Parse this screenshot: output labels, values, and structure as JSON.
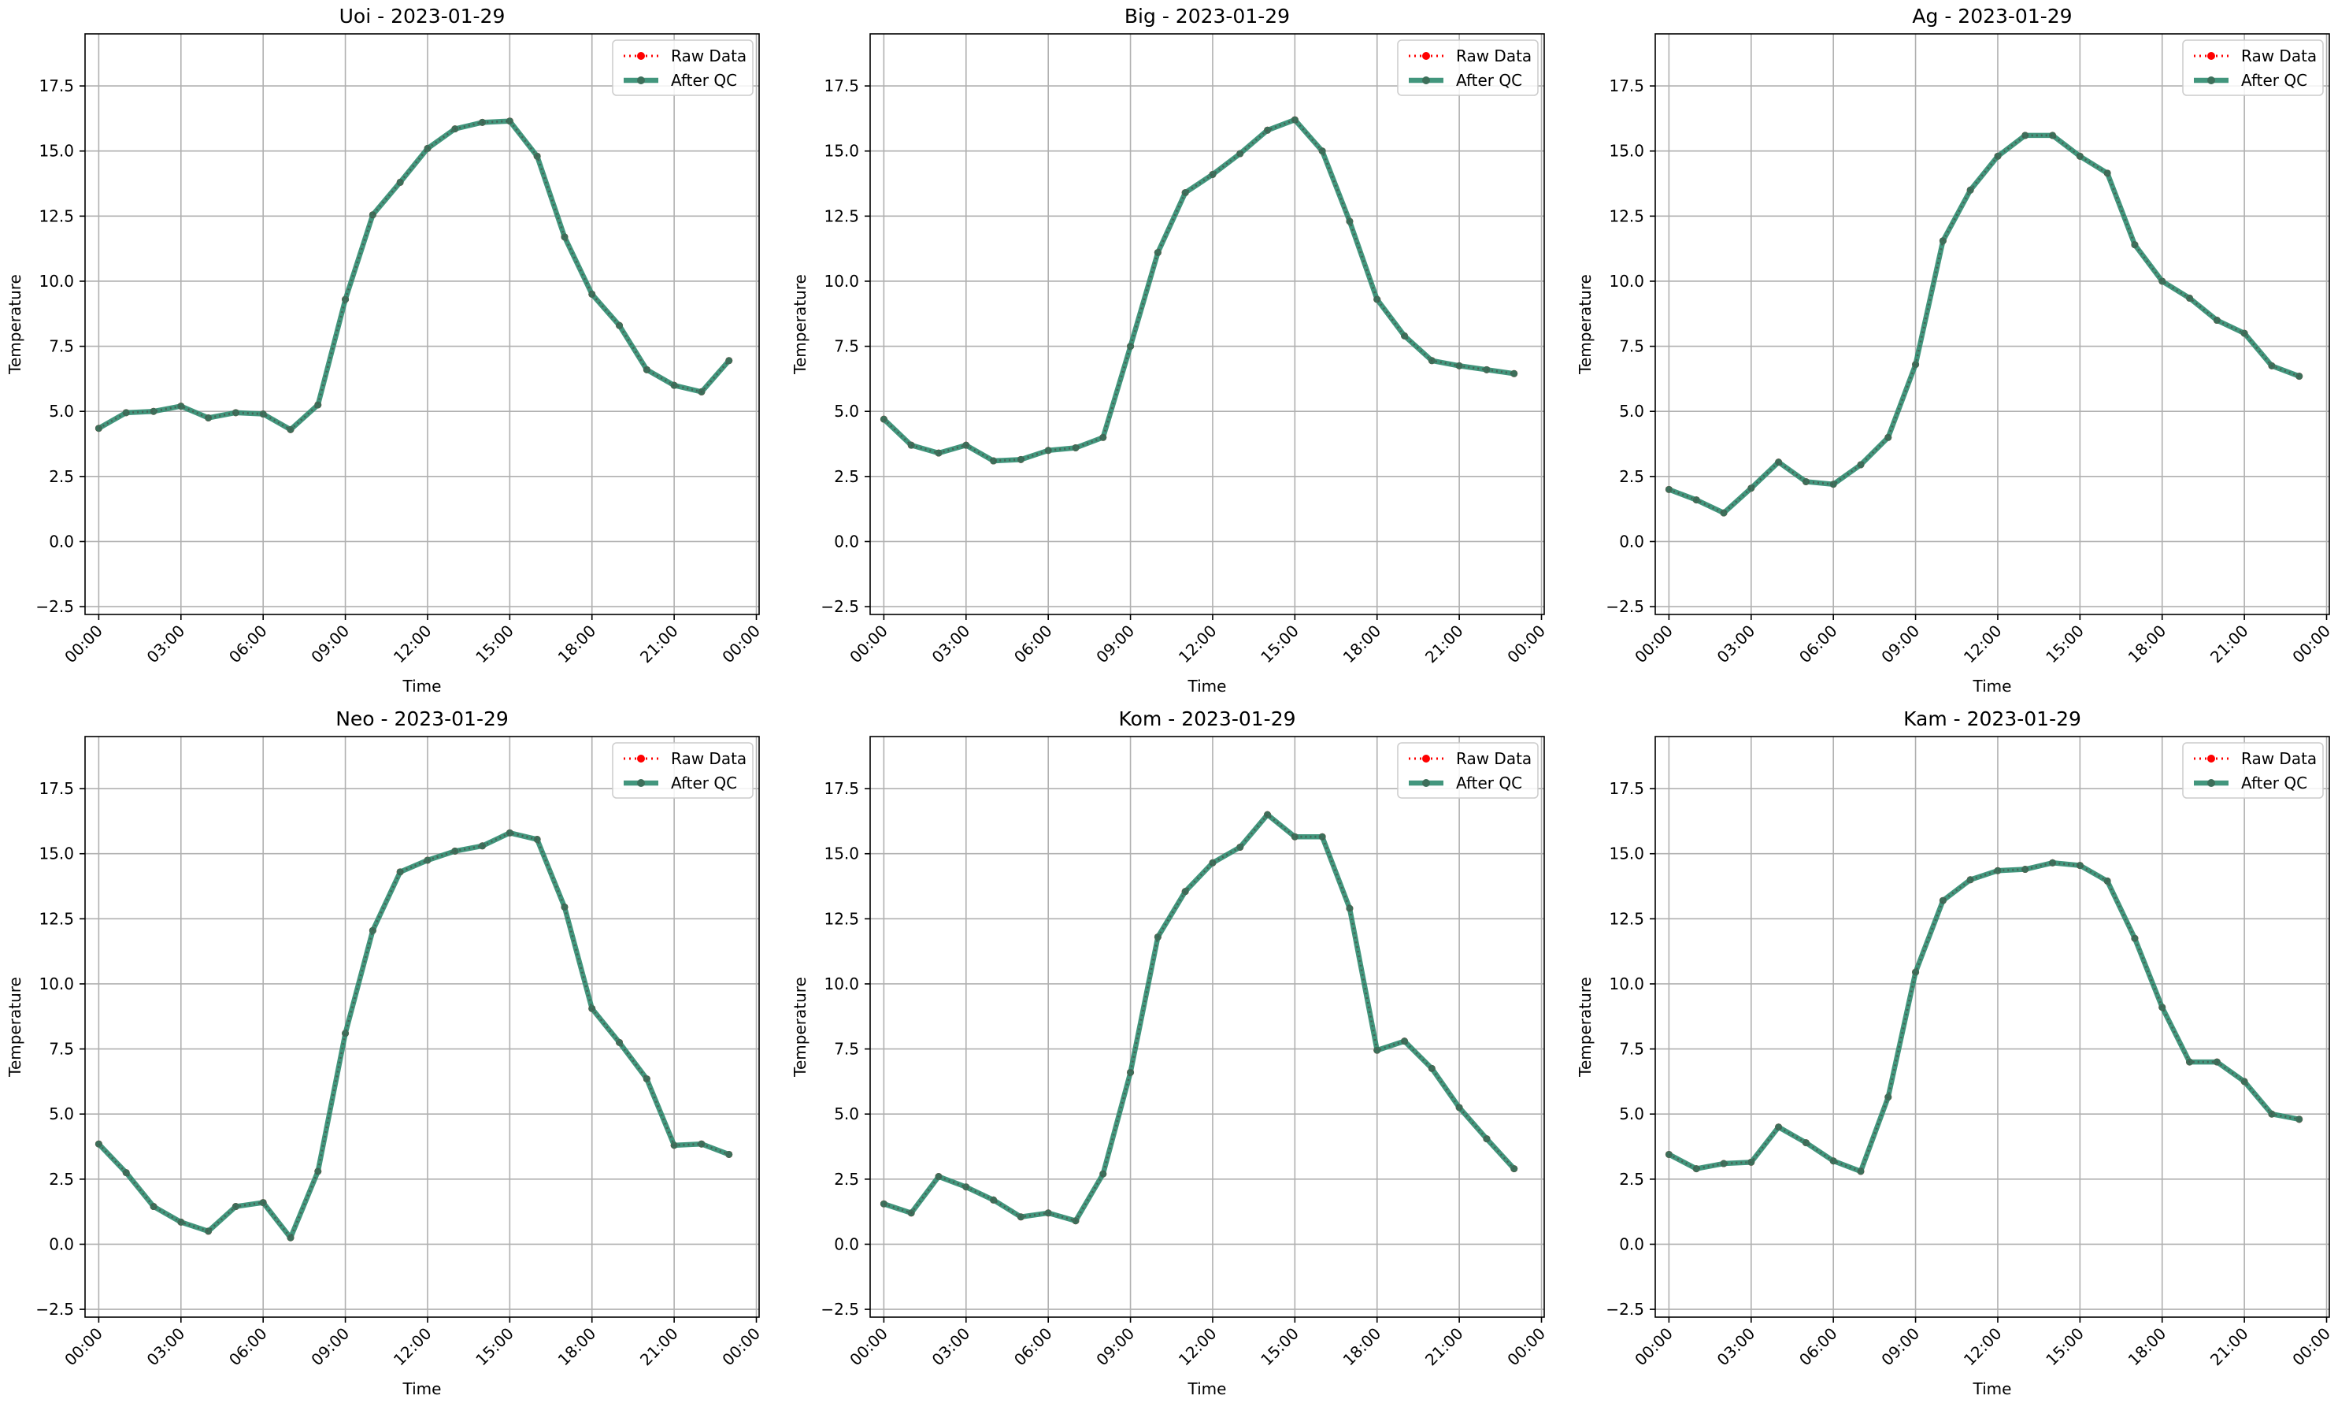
{
  "figure": {
    "legend_labels": [
      "Raw Data",
      "After QC"
    ],
    "colors": {
      "raw": "#ff0000",
      "qc": "#2e8b6f",
      "qc_marker": "#3d6f5a",
      "grid": "#b0b0b0",
      "axis": "#000000"
    }
  },
  "chart_data": [
    {
      "type": "line",
      "title": "Uoi - 2023-01-29",
      "xlabel": "Time",
      "ylabel": "Temperature",
      "ylim": [
        -2.8,
        19.5
      ],
      "xlim_hours": [
        -0.5,
        24.1
      ],
      "x_ticks": [
        "00:00",
        "03:00",
        "06:00",
        "09:00",
        "12:00",
        "15:00",
        "18:00",
        "21:00",
        "00:00"
      ],
      "y_ticks": [
        "−2.5",
        "0.0",
        "2.5",
        "5.0",
        "7.5",
        "10.0",
        "12.5",
        "15.0",
        "17.5"
      ],
      "grid": true,
      "legend_position": "top-right",
      "x": [
        "00:00",
        "01:00",
        "02:00",
        "03:00",
        "04:00",
        "05:00",
        "06:00",
        "07:00",
        "08:00",
        "09:00",
        "10:00",
        "11:00",
        "12:00",
        "13:00",
        "14:00",
        "15:00",
        "16:00",
        "17:00",
        "18:00",
        "19:00",
        "20:00",
        "21:00",
        "22:00",
        "23:00"
      ],
      "series": [
        {
          "name": "Raw Data",
          "values": [
            4.35,
            4.95,
            5.0,
            5.2,
            4.75,
            4.95,
            4.9,
            4.3,
            5.25,
            9.3,
            12.55,
            13.8,
            15.1,
            15.85,
            16.1,
            16.15,
            14.8,
            11.7,
            9.5,
            8.3,
            6.6,
            6.0,
            5.75,
            6.95
          ]
        },
        {
          "name": "After QC",
          "values": [
            4.35,
            4.95,
            5.0,
            5.2,
            4.75,
            4.95,
            4.9,
            4.3,
            5.25,
            9.3,
            12.55,
            13.8,
            15.1,
            15.85,
            16.1,
            16.15,
            14.8,
            11.7,
            9.5,
            8.3,
            6.6,
            6.0,
            5.75,
            6.95
          ]
        }
      ]
    },
    {
      "type": "line",
      "title": "Big - 2023-01-29",
      "xlabel": "Time",
      "ylabel": "Temperature",
      "ylim": [
        -2.8,
        19.5
      ],
      "xlim_hours": [
        -0.5,
        24.1
      ],
      "x_ticks": [
        "00:00",
        "03:00",
        "06:00",
        "09:00",
        "12:00",
        "15:00",
        "18:00",
        "21:00",
        "00:00"
      ],
      "y_ticks": [
        "−2.5",
        "0.0",
        "2.5",
        "5.0",
        "7.5",
        "10.0",
        "12.5",
        "15.0",
        "17.5"
      ],
      "grid": true,
      "legend_position": "top-right",
      "x": [
        "00:00",
        "01:00",
        "02:00",
        "03:00",
        "04:00",
        "05:00",
        "06:00",
        "07:00",
        "08:00",
        "09:00",
        "10:00",
        "11:00",
        "12:00",
        "13:00",
        "14:00",
        "15:00",
        "16:00",
        "17:00",
        "18:00",
        "19:00",
        "20:00",
        "21:00",
        "22:00",
        "23:00"
      ],
      "series": [
        {
          "name": "Raw Data",
          "values": [
            4.7,
            3.7,
            3.4,
            3.7,
            3.1,
            3.15,
            3.5,
            3.6,
            4.0,
            7.5,
            11.1,
            13.4,
            14.1,
            14.9,
            15.8,
            16.2,
            15.0,
            12.3,
            9.3,
            7.9,
            6.95,
            6.75,
            6.6,
            6.45
          ]
        },
        {
          "name": "After QC",
          "values": [
            4.7,
            3.7,
            3.4,
            3.7,
            3.1,
            3.15,
            3.5,
            3.6,
            4.0,
            7.5,
            11.1,
            13.4,
            14.1,
            14.9,
            15.8,
            16.2,
            15.0,
            12.3,
            9.3,
            7.9,
            6.95,
            6.75,
            6.6,
            6.45
          ]
        }
      ]
    },
    {
      "type": "line",
      "title": "Ag - 2023-01-29",
      "xlabel": "Time",
      "ylabel": "Temperature",
      "ylim": [
        -2.8,
        19.5
      ],
      "xlim_hours": [
        -0.5,
        24.1
      ],
      "x_ticks": [
        "00:00",
        "03:00",
        "06:00",
        "09:00",
        "12:00",
        "15:00",
        "18:00",
        "21:00",
        "00:00"
      ],
      "y_ticks": [
        "−2.5",
        "0.0",
        "2.5",
        "5.0",
        "7.5",
        "10.0",
        "12.5",
        "15.0",
        "17.5"
      ],
      "grid": true,
      "legend_position": "top-right",
      "x": [
        "00:00",
        "01:00",
        "02:00",
        "03:00",
        "04:00",
        "05:00",
        "06:00",
        "07:00",
        "08:00",
        "09:00",
        "10:00",
        "11:00",
        "12:00",
        "13:00",
        "14:00",
        "15:00",
        "16:00",
        "17:00",
        "18:00",
        "19:00",
        "20:00",
        "21:00",
        "22:00",
        "23:00"
      ],
      "series": [
        {
          "name": "Raw Data",
          "values": [
            2.0,
            1.6,
            1.1,
            2.05,
            3.05,
            2.3,
            2.2,
            2.95,
            4.0,
            6.8,
            11.55,
            13.5,
            14.8,
            15.6,
            15.6,
            14.8,
            14.15,
            11.4,
            10.0,
            9.35,
            8.5,
            8.0,
            6.75,
            6.35
          ]
        },
        {
          "name": "After QC",
          "values": [
            2.0,
            1.6,
            1.1,
            2.05,
            3.05,
            2.3,
            2.2,
            2.95,
            4.0,
            6.8,
            11.55,
            13.5,
            14.8,
            15.6,
            15.6,
            14.8,
            14.15,
            11.4,
            10.0,
            9.35,
            8.5,
            8.0,
            6.75,
            6.35
          ]
        }
      ]
    },
    {
      "type": "line",
      "title": "Neo - 2023-01-29",
      "xlabel": "Time",
      "ylabel": "Temperature",
      "ylim": [
        -2.8,
        19.5
      ],
      "xlim_hours": [
        -0.5,
        24.1
      ],
      "x_ticks": [
        "00:00",
        "03:00",
        "06:00",
        "09:00",
        "12:00",
        "15:00",
        "18:00",
        "21:00",
        "00:00"
      ],
      "y_ticks": [
        "−2.5",
        "0.0",
        "2.5",
        "5.0",
        "7.5",
        "10.0",
        "12.5",
        "15.0",
        "17.5"
      ],
      "grid": true,
      "legend_position": "top-right",
      "x": [
        "00:00",
        "01:00",
        "02:00",
        "03:00",
        "04:00",
        "05:00",
        "06:00",
        "07:00",
        "08:00",
        "09:00",
        "10:00",
        "11:00",
        "12:00",
        "13:00",
        "14:00",
        "15:00",
        "16:00",
        "17:00",
        "18:00",
        "19:00",
        "20:00",
        "21:00",
        "22:00",
        "23:00"
      ],
      "series": [
        {
          "name": "Raw Data",
          "values": [
            3.85,
            2.75,
            1.45,
            0.85,
            0.5,
            1.45,
            1.6,
            0.25,
            2.8,
            8.1,
            12.05,
            14.3,
            14.75,
            15.1,
            15.3,
            15.8,
            15.55,
            12.95,
            9.05,
            7.75,
            6.35,
            3.8,
            3.85,
            3.45
          ]
        },
        {
          "name": "After QC",
          "values": [
            3.85,
            2.75,
            1.45,
            0.85,
            0.5,
            1.45,
            1.6,
            0.25,
            2.8,
            8.1,
            12.05,
            14.3,
            14.75,
            15.1,
            15.3,
            15.8,
            15.55,
            12.95,
            9.05,
            7.75,
            6.35,
            3.8,
            3.85,
            3.45
          ]
        }
      ]
    },
    {
      "type": "line",
      "title": "Kom - 2023-01-29",
      "xlabel": "Time",
      "ylabel": "Temperature",
      "ylim": [
        -2.8,
        19.5
      ],
      "xlim_hours": [
        -0.5,
        24.1
      ],
      "x_ticks": [
        "00:00",
        "03:00",
        "06:00",
        "09:00",
        "12:00",
        "15:00",
        "18:00",
        "21:00",
        "00:00"
      ],
      "y_ticks": [
        "−2.5",
        "0.0",
        "2.5",
        "5.0",
        "7.5",
        "10.0",
        "12.5",
        "15.0",
        "17.5"
      ],
      "grid": true,
      "legend_position": "top-right",
      "x": [
        "00:00",
        "01:00",
        "02:00",
        "03:00",
        "04:00",
        "05:00",
        "06:00",
        "07:00",
        "08:00",
        "09:00",
        "10:00",
        "11:00",
        "12:00",
        "13:00",
        "14:00",
        "15:00",
        "16:00",
        "17:00",
        "18:00",
        "19:00",
        "20:00",
        "21:00",
        "22:00",
        "23:00"
      ],
      "series": [
        {
          "name": "Raw Data",
          "values": [
            1.55,
            1.2,
            2.6,
            2.2,
            1.7,
            1.05,
            1.2,
            0.9,
            2.7,
            6.6,
            11.8,
            13.55,
            14.65,
            15.25,
            16.5,
            15.65,
            15.65,
            12.9,
            7.45,
            7.8,
            6.75,
            5.25,
            4.05,
            2.9
          ]
        },
        {
          "name": "After QC",
          "values": [
            1.55,
            1.2,
            2.6,
            2.2,
            1.7,
            1.05,
            1.2,
            0.9,
            2.7,
            6.6,
            11.8,
            13.55,
            14.65,
            15.25,
            16.5,
            15.65,
            15.65,
            12.9,
            7.45,
            7.8,
            6.75,
            5.25,
            4.05,
            2.9
          ]
        }
      ]
    },
    {
      "type": "line",
      "title": "Kam - 2023-01-29",
      "xlabel": "Time",
      "ylabel": "Temperature",
      "ylim": [
        -2.8,
        19.5
      ],
      "xlim_hours": [
        -0.5,
        24.1
      ],
      "x_ticks": [
        "00:00",
        "03:00",
        "06:00",
        "09:00",
        "12:00",
        "15:00",
        "18:00",
        "21:00",
        "00:00"
      ],
      "y_ticks": [
        "−2.5",
        "0.0",
        "2.5",
        "5.0",
        "7.5",
        "10.0",
        "12.5",
        "15.0",
        "17.5"
      ],
      "grid": true,
      "legend_position": "top-right",
      "x": [
        "00:00",
        "01:00",
        "02:00",
        "03:00",
        "04:00",
        "05:00",
        "06:00",
        "07:00",
        "08:00",
        "09:00",
        "10:00",
        "11:00",
        "12:00",
        "13:00",
        "14:00",
        "15:00",
        "16:00",
        "17:00",
        "18:00",
        "19:00",
        "20:00",
        "21:00",
        "22:00",
        "23:00"
      ],
      "series": [
        {
          "name": "Raw Data",
          "values": [
            3.45,
            2.9,
            3.1,
            3.15,
            4.5,
            3.9,
            3.2,
            2.8,
            5.65,
            10.45,
            13.2,
            14.0,
            14.35,
            14.4,
            14.65,
            14.55,
            13.95,
            11.75,
            9.1,
            7.0,
            7.0,
            6.25,
            5.0,
            4.8
          ]
        },
        {
          "name": "After QC",
          "values": [
            3.45,
            2.9,
            3.1,
            3.15,
            4.5,
            3.9,
            3.2,
            2.8,
            5.65,
            10.45,
            13.2,
            14.0,
            14.35,
            14.4,
            14.65,
            14.55,
            13.95,
            11.75,
            9.1,
            7.0,
            7.0,
            6.25,
            5.0,
            4.8
          ]
        }
      ]
    }
  ]
}
